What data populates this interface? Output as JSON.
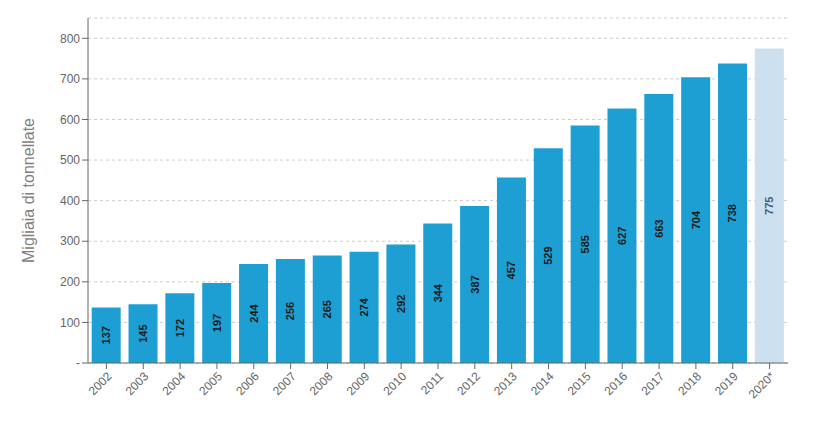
{
  "chart_data": {
    "type": "bar",
    "categories": [
      "2002",
      "2003",
      "2004",
      "2005",
      "2006",
      "2007",
      "2008",
      "2009",
      "2010",
      "2011",
      "2012",
      "2013",
      "2014",
      "2015",
      "2016",
      "2017",
      "2018",
      "2019",
      "2020*"
    ],
    "values": [
      137,
      145,
      172,
      197,
      244,
      256,
      265,
      274,
      292,
      344,
      387,
      457,
      529,
      585,
      627,
      663,
      704,
      738,
      775
    ],
    "colors": [
      "#1e9fd4",
      "#1e9fd4",
      "#1e9fd4",
      "#1e9fd4",
      "#1e9fd4",
      "#1e9fd4",
      "#1e9fd4",
      "#1e9fd4",
      "#1e9fd4",
      "#1e9fd4",
      "#1e9fd4",
      "#1e9fd4",
      "#1e9fd4",
      "#1e9fd4",
      "#1e9fd4",
      "#1e9fd4",
      "#1e9fd4",
      "#1e9fd4",
      "#cce0f0"
    ],
    "ylabel": "Migliaia di tonnellate",
    "ylim": [
      0,
      850
    ],
    "yticks": [
      {
        "value": 0,
        "label": "-"
      },
      100,
      200,
      300,
      400,
      500,
      600,
      700,
      800
    ],
    "grid": true,
    "data_labels": true
  }
}
